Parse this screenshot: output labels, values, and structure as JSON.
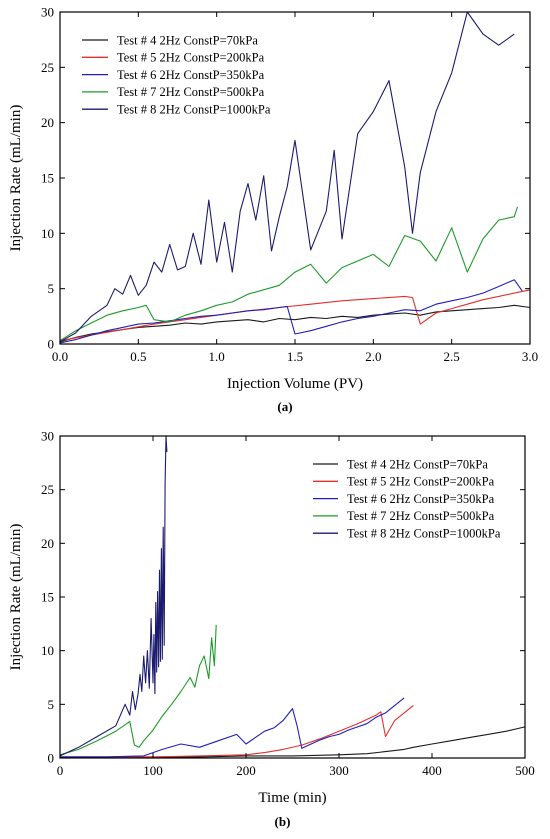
{
  "colors": {
    "test4": "#1a1a1a",
    "test5": "#e0302c",
    "test6": "#2020b8",
    "test7": "#1f9a2a",
    "test8": "#1c1c6e"
  },
  "chart_data": [
    {
      "panel_label": "(a)",
      "type": "line",
      "xlabel": "Injection Volume (PV)",
      "ylabel": "Injection Rate (mL/min)",
      "xlim": [
        0,
        3.0
      ],
      "ylim": [
        0,
        30
      ],
      "x_ticks": [
        "0.0",
        "0.5",
        "1.0",
        "1.5",
        "2.0",
        "2.5",
        "3.0"
      ],
      "x_tick_values": [
        0,
        0.5,
        1.0,
        1.5,
        2.0,
        2.5,
        3.0
      ],
      "y_ticks": [
        "0",
        "5",
        "10",
        "15",
        "20",
        "25",
        "30"
      ],
      "y_tick_values": [
        0,
        5,
        10,
        15,
        20,
        25,
        30
      ],
      "legend_position": "top-left",
      "series": [
        {
          "name": "Test # 4 2Hz ConstP=70kPa",
          "color": "#1a1a1a",
          "x": [
            0,
            0.1,
            0.2,
            0.3,
            0.4,
            0.5,
            0.6,
            0.7,
            0.8,
            0.9,
            1.0,
            1.1,
            1.2,
            1.3,
            1.4,
            1.5,
            1.6,
            1.7,
            1.8,
            1.9,
            2.0,
            2.1,
            2.2,
            2.3,
            2.4,
            2.5,
            2.6,
            2.7,
            2.8,
            2.9,
            3.0
          ],
          "y": [
            0.2,
            0.6,
            0.9,
            1.1,
            1.3,
            1.5,
            1.6,
            1.7,
            1.9,
            1.8,
            2.0,
            2.1,
            2.2,
            2.0,
            2.3,
            2.2,
            2.4,
            2.3,
            2.5,
            2.4,
            2.6,
            2.7,
            2.8,
            2.6,
            2.9,
            3.0,
            3.1,
            3.2,
            3.3,
            3.5,
            3.3
          ]
        },
        {
          "name": "Test # 5 2Hz ConstP=200kPa",
          "color": "#e0302c",
          "x": [
            0,
            0.2,
            0.4,
            0.6,
            0.8,
            1.0,
            1.2,
            1.4,
            1.6,
            1.8,
            2.0,
            2.2,
            2.25,
            2.3,
            2.4,
            2.5,
            2.6,
            2.7,
            2.8,
            2.9,
            3.0
          ],
          "y": [
            0.3,
            0.8,
            1.3,
            1.8,
            2.2,
            2.6,
            3.0,
            3.3,
            3.6,
            3.9,
            4.1,
            4.3,
            4.2,
            1.8,
            2.8,
            3.2,
            3.6,
            4.0,
            4.3,
            4.6,
            4.9
          ]
        },
        {
          "name": "Test # 6 2Hz ConstP=350kPa",
          "color": "#2020b8",
          "x": [
            0,
            0.1,
            0.2,
            0.3,
            0.4,
            0.5,
            0.6,
            0.7,
            0.8,
            0.9,
            1.0,
            1.1,
            1.2,
            1.3,
            1.4,
            1.45,
            1.5,
            1.6,
            1.7,
            1.8,
            1.9,
            2.0,
            2.1,
            2.2,
            2.3,
            2.4,
            2.5,
            2.6,
            2.7,
            2.8,
            2.9,
            2.95
          ],
          "y": [
            0.1,
            0.4,
            0.8,
            1.2,
            1.5,
            1.8,
            1.9,
            2.1,
            2.3,
            2.5,
            2.6,
            2.8,
            3.0,
            3.1,
            3.3,
            3.4,
            0.9,
            1.2,
            1.6,
            2.0,
            2.3,
            2.5,
            2.8,
            3.1,
            3.0,
            3.6,
            3.9,
            4.2,
            4.6,
            5.2,
            5.8,
            4.8
          ]
        },
        {
          "name": "Test # 7 2Hz ConstP=500kPa",
          "color": "#1f9a2a",
          "x": [
            0,
            0.1,
            0.2,
            0.3,
            0.4,
            0.5,
            0.55,
            0.6,
            0.7,
            0.8,
            0.9,
            1.0,
            1.1,
            1.2,
            1.3,
            1.4,
            1.5,
            1.6,
            1.7,
            1.8,
            1.9,
            2.0,
            2.1,
            2.2,
            2.3,
            2.4,
            2.5,
            2.6,
            2.7,
            2.8,
            2.9,
            2.92
          ],
          "y": [
            0.3,
            1.2,
            1.9,
            2.6,
            3.0,
            3.3,
            3.5,
            2.2,
            2.0,
            2.6,
            3.0,
            3.5,
            3.8,
            4.5,
            4.9,
            5.3,
            6.5,
            7.2,
            5.5,
            6.9,
            7.5,
            8.1,
            7.0,
            9.8,
            9.3,
            7.5,
            10.5,
            6.5,
            9.5,
            11.2,
            11.5,
            12.4
          ]
        },
        {
          "name": "Test # 8 2Hz ConstP=1000kPa",
          "color": "#1c1c6e",
          "x": [
            0,
            0.1,
            0.2,
            0.3,
            0.35,
            0.4,
            0.45,
            0.5,
            0.55,
            0.6,
            0.65,
            0.7,
            0.75,
            0.8,
            0.85,
            0.9,
            0.95,
            1.0,
            1.05,
            1.1,
            1.15,
            1.2,
            1.25,
            1.3,
            1.35,
            1.4,
            1.45,
            1.5,
            1.6,
            1.7,
            1.75,
            1.8,
            1.9,
            2.0,
            2.1,
            2.2,
            2.25,
            2.3,
            2.4,
            2.5,
            2.6,
            2.7,
            2.8,
            2.9
          ],
          "y": [
            0.2,
            1.0,
            2.5,
            3.5,
            5.0,
            4.5,
            6.2,
            4.4,
            5.3,
            7.4,
            6.5,
            9.0,
            6.7,
            7.0,
            10.0,
            7.2,
            13.0,
            7.4,
            11.0,
            6.5,
            12.0,
            14.5,
            11.2,
            15.2,
            8.4,
            11.5,
            14.2,
            18.4,
            8.5,
            12.0,
            17.5,
            9.5,
            19.0,
            21.0,
            23.8,
            16.0,
            10.0,
            15.5,
            21.0,
            24.5,
            30.0,
            28.0,
            27.0,
            28.0
          ]
        }
      ]
    },
    {
      "panel_label": "(b)",
      "type": "line",
      "xlabel": "Time (min)",
      "ylabel": "Injection Rate (mL/min)",
      "xlim": [
        0,
        500
      ],
      "ylim": [
        0,
        30
      ],
      "x_ticks": [
        "0",
        "100",
        "200",
        "300",
        "400",
        "500"
      ],
      "x_tick_values": [
        0,
        100,
        200,
        300,
        400,
        500
      ],
      "y_ticks": [
        "0",
        "5",
        "10",
        "15",
        "20",
        "25",
        "30"
      ],
      "y_tick_values": [
        0,
        5,
        10,
        15,
        20,
        25,
        30
      ],
      "legend_position": "top-right",
      "series": [
        {
          "name": "Test # 4 2Hz ConstP=70kPa",
          "color": "#1a1a1a",
          "x": [
            0,
            50,
            100,
            150,
            200,
            250,
            300,
            330,
            350,
            370,
            380,
            400,
            420,
            440,
            460,
            480,
            500
          ],
          "y": [
            0.1,
            0.1,
            0.1,
            0.1,
            0.2,
            0.2,
            0.3,
            0.4,
            0.6,
            0.8,
            1.0,
            1.3,
            1.6,
            1.9,
            2.2,
            2.5,
            2.9
          ]
        },
        {
          "name": "Test # 5 2Hz ConstP=200kPa",
          "color": "#e0302c",
          "x": [
            0,
            50,
            100,
            150,
            200,
            220,
            240,
            260,
            280,
            300,
            320,
            340,
            345,
            350,
            360,
            370,
            380
          ],
          "y": [
            0.1,
            0.1,
            0.1,
            0.2,
            0.3,
            0.5,
            0.8,
            1.2,
            1.8,
            2.5,
            3.2,
            4.0,
            4.3,
            2.0,
            3.5,
            4.2,
            4.9
          ]
        },
        {
          "name": "Test # 6 2Hz ConstP=350kPa",
          "color": "#2020b8",
          "x": [
            0,
            50,
            90,
            110,
            130,
            150,
            170,
            190,
            200,
            210,
            220,
            230,
            240,
            250,
            255,
            260,
            270,
            280,
            290,
            300,
            310,
            320,
            330,
            340,
            350,
            360,
            370
          ],
          "y": [
            0.1,
            0.1,
            0.2,
            0.8,
            1.3,
            1.0,
            1.6,
            2.2,
            1.3,
            1.9,
            2.5,
            2.8,
            3.5,
            4.6,
            3.0,
            0.9,
            1.3,
            1.7,
            2.0,
            2.2,
            2.6,
            2.9,
            3.2,
            3.8,
            4.2,
            4.9,
            5.6
          ]
        },
        {
          "name": "Test # 7 2Hz ConstP=500kPa",
          "color": "#1f9a2a",
          "x": [
            0,
            20,
            40,
            60,
            75,
            80,
            85,
            90,
            100,
            110,
            120,
            130,
            140,
            145,
            150,
            155,
            160,
            163,
            166,
            168
          ],
          "y": [
            0.3,
            0.8,
            1.6,
            2.5,
            3.4,
            1.2,
            1.0,
            1.6,
            2.6,
            3.9,
            5.0,
            6.2,
            7.5,
            6.6,
            8.6,
            9.5,
            7.4,
            11.2,
            8.6,
            12.4
          ]
        },
        {
          "name": "Test # 8 2Hz ConstP=1000kPa",
          "color": "#1c1c6e",
          "x": [
            0,
            20,
            40,
            60,
            70,
            75,
            78,
            81,
            84,
            86,
            88,
            90,
            92,
            94,
            96,
            98,
            100,
            101,
            102,
            103,
            104,
            105,
            106,
            107,
            108,
            109,
            110,
            111,
            112,
            113,
            114,
            115
          ],
          "y": [
            0.2,
            1.0,
            2.0,
            3.0,
            5.0,
            4.0,
            6.2,
            4.5,
            6.0,
            7.8,
            6.2,
            9.5,
            7.0,
            10.0,
            6.5,
            13.0,
            7.0,
            11.5,
            6.0,
            14.5,
            8.0,
            15.5,
            8.5,
            17.5,
            9.0,
            19.5,
            9.2,
            21.5,
            10.5,
            25.5,
            30.0,
            28.5
          ]
        }
      ]
    }
  ]
}
